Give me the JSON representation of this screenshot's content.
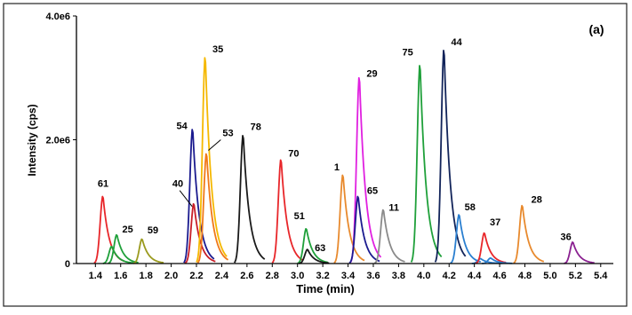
{
  "chart_data": {
    "type": "line",
    "panel_label": "(a)",
    "xlabel": "Time (min)",
    "ylabel": "Intensity (cps)",
    "xlim": [
      1.25,
      5.5
    ],
    "ylim": [
      0,
      4000000
    ],
    "x_ticks": [
      1.4,
      1.6,
      1.8,
      2.0,
      2.2,
      2.4,
      2.6,
      2.8,
      3.0,
      3.2,
      3.4,
      3.6,
      3.8,
      4.0,
      4.2,
      4.4,
      4.6,
      4.8,
      5.0,
      5.2,
      5.4
    ],
    "x_tick_labels": [
      "1.4",
      "1.6",
      "1.8",
      "2.0",
      "2.2",
      "2.4",
      "2.6",
      "2.8",
      "3.0",
      "3.2",
      "3.4",
      "3.6",
      "3.8",
      "4.0",
      "4.2",
      "4.4",
      "4.6",
      "4.8",
      "5.0",
      "5.2",
      "5.4"
    ],
    "y_ticks": [
      0,
      2000000,
      4000000
    ],
    "y_tick_labels": [
      "0",
      "2.0e6",
      "4.0e6"
    ],
    "grid": false,
    "legend": "none",
    "peaks": [
      {
        "label": "61",
        "rt": 1.46,
        "height": 1100000,
        "color": "#e8262a"
      },
      {
        "label": "",
        "rt": 1.53,
        "height": 280000,
        "color": "#1fa03a"
      },
      {
        "label": "25",
        "rt": 1.57,
        "height": 470000,
        "color": "#1fa03a"
      },
      {
        "label": "59",
        "rt": 1.77,
        "height": 400000,
        "color": "#9a9a1e"
      },
      {
        "label": "54",
        "rt": 2.17,
        "height": 2200000,
        "color": "#1b1b8f"
      },
      {
        "label": "40",
        "rt": 2.18,
        "height": 980000,
        "color": "#c81e28"
      },
      {
        "label": "35",
        "rt": 2.27,
        "height": 3380000,
        "color": "#f5b800"
      },
      {
        "label": "53",
        "rt": 2.28,
        "height": 1800000,
        "color": "#f07818"
      },
      {
        "label": "78",
        "rt": 2.57,
        "height": 2100000,
        "color": "#1a1a1a"
      },
      {
        "label": "70",
        "rt": 2.87,
        "height": 1700000,
        "color": "#e8262a"
      },
      {
        "label": "51",
        "rt": 3.07,
        "height": 570000,
        "color": "#1fa03a"
      },
      {
        "label": "63",
        "rt": 3.08,
        "height": 230000,
        "color": "#1a1a1a"
      },
      {
        "label": "1",
        "rt": 3.36,
        "height": 1450000,
        "color": "#e88a2e"
      },
      {
        "label": "29",
        "rt": 3.49,
        "height": 3050000,
        "color": "#e020e0"
      },
      {
        "label": "65",
        "rt": 3.48,
        "height": 1100000,
        "color": "#1b1b8f"
      },
      {
        "label": "11",
        "rt": 3.68,
        "height": 880000,
        "color": "#8a8a8a"
      },
      {
        "label": "75",
        "rt": 3.97,
        "height": 3250000,
        "color": "#1fa03a"
      },
      {
        "label": "44",
        "rt": 4.16,
        "height": 3500000,
        "color": "#12245a"
      },
      {
        "label": "58",
        "rt": 4.28,
        "height": 800000,
        "color": "#2a7fd0"
      },
      {
        "label": "",
        "rt": 4.45,
        "height": 80000,
        "color": "#2a7fd0"
      },
      {
        "label": "37",
        "rt": 4.48,
        "height": 500000,
        "color": "#e8262a"
      },
      {
        "label": "",
        "rt": 4.53,
        "height": 90000,
        "color": "#2a7fd0"
      },
      {
        "label": "28",
        "rt": 4.78,
        "height": 950000,
        "color": "#e88a2e"
      },
      {
        "label": "36",
        "rt": 5.18,
        "height": 350000,
        "color": "#8a2090"
      }
    ]
  }
}
